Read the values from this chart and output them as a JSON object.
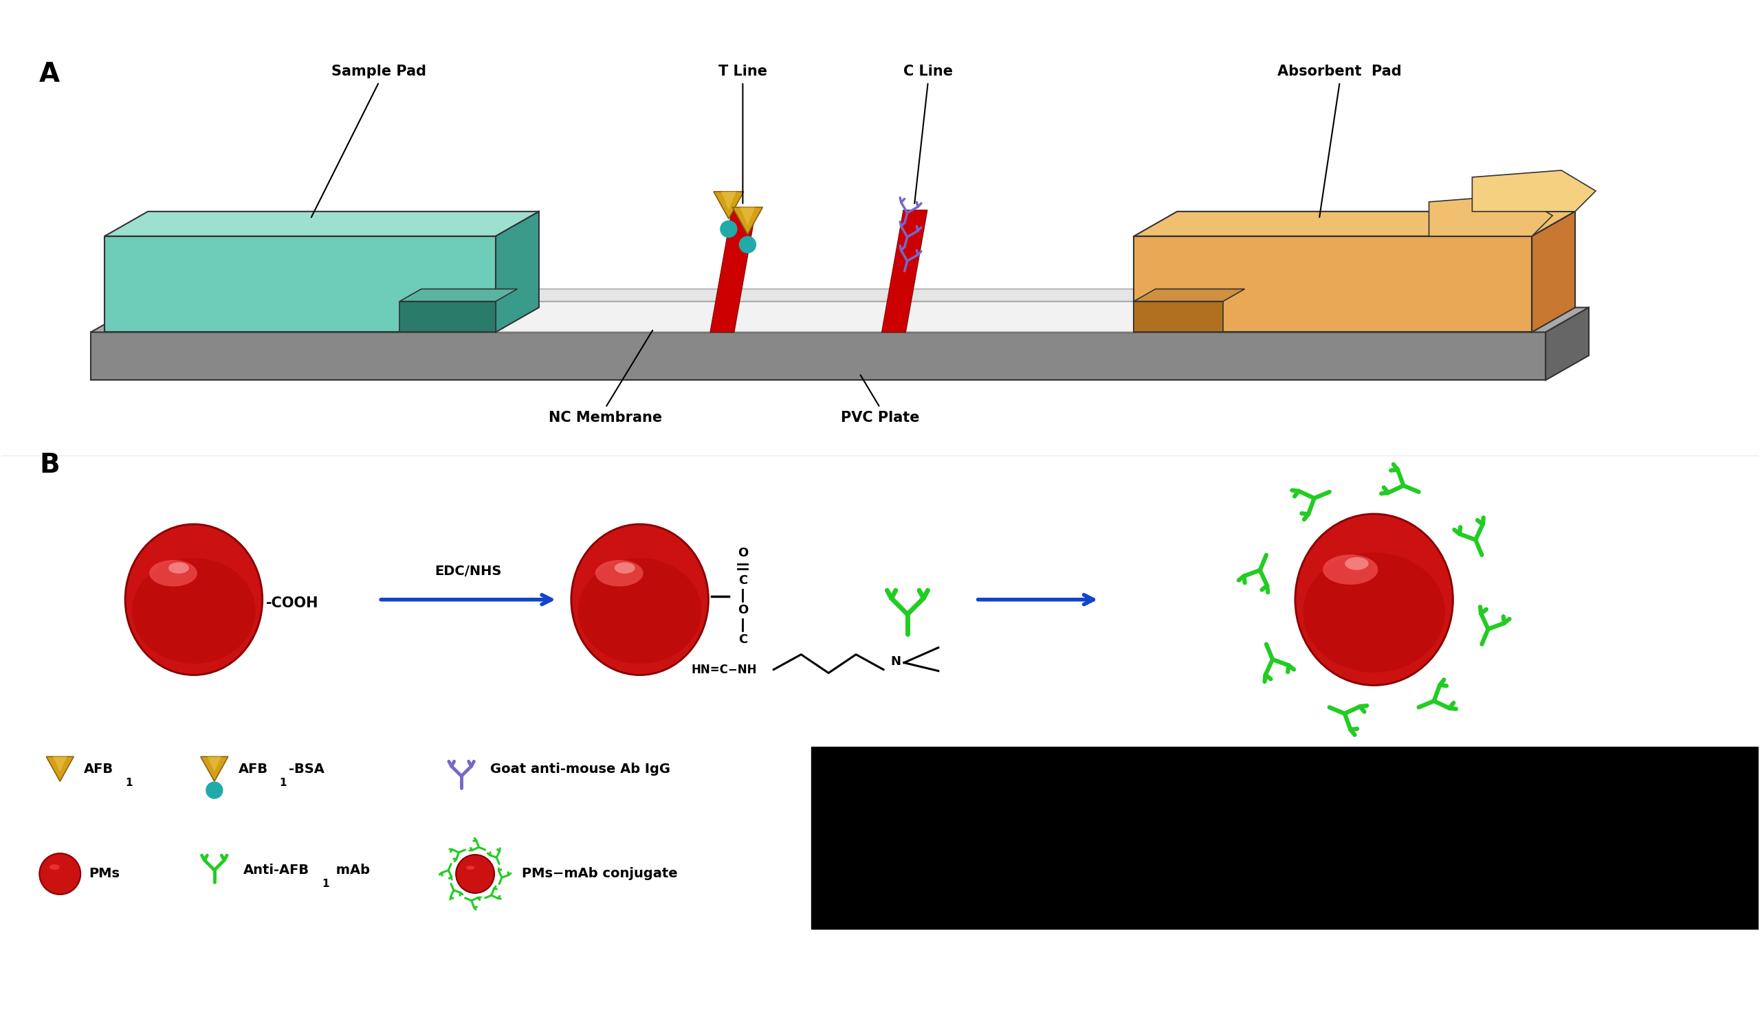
{
  "background_color": "#ffffff",
  "panel_A_label": "A",
  "panel_B_label": "B",
  "labels": {
    "sample_pad": "Sample Pad",
    "t_line": "T Line",
    "c_line": "C Line",
    "absorbent_pad": "Absorbent  Pad",
    "nc_membrane": "NC Membrane",
    "pvc_plate": "PVC Plate"
  },
  "colors": {
    "teal": "#6DCDB8",
    "teal_top": "#9DE0D0",
    "teal_side": "#3A9B8A",
    "orange_pad": "#E8A855",
    "orange_top": "#F0C070",
    "orange_side": "#C87830",
    "gray_base_front": "#888888",
    "gray_base_top": "#AAAAAA",
    "gray_base_side": "#666666",
    "white_mem": "#F0F0F0",
    "white_mem_top": "#E0E0E0",
    "red_line": "#CC0000",
    "gold": "#D4A017",
    "gold_light": "#E8C040",
    "teal_dot": "#22AAAA",
    "blue_ab": "#7766CC",
    "blue_ab_light": "#9988DD",
    "green_ab": "#22CC22",
    "arrow_blue": "#1144CC",
    "black": "#000000",
    "red_sphere_main": "#CC1111",
    "red_sphere_dark": "#880000",
    "red_sphere_highlight": "#FF4444"
  }
}
